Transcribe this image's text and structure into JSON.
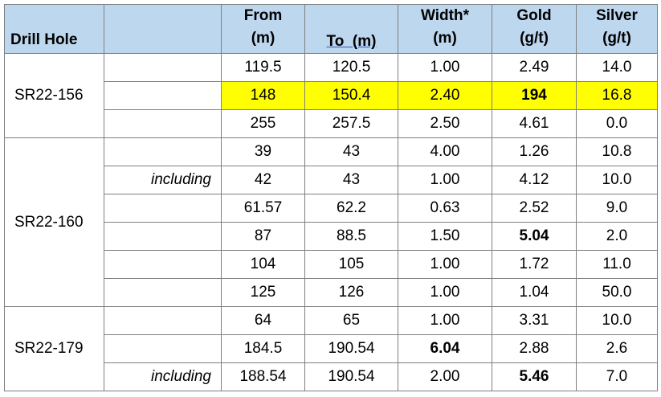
{
  "header": {
    "drill_hole": "Drill Hole",
    "from_l1": "From",
    "from_l2": "(m)",
    "to": "To  (m)",
    "width_l1": "Width*",
    "width_l2": "(m)",
    "gold_l1": "Gold",
    "gold_l2": "(g/t)",
    "silver_l1": "Silver",
    "silver_l2": "(g/t)"
  },
  "groups": [
    {
      "hole": "SR22-156",
      "rows": [
        {
          "note": "",
          "from": "119.5",
          "to": "120.5",
          "width": "1.00",
          "gold": "2.49",
          "silver": "14.0",
          "highlight": false,
          "bold_width": false,
          "bold_gold": false
        },
        {
          "note": "",
          "from": "148",
          "to": "150.4",
          "width": "2.40",
          "gold": "194",
          "silver": "16.8",
          "highlight": true,
          "bold_width": false,
          "bold_gold": true
        },
        {
          "note": "",
          "from": "255",
          "to": "257.5",
          "width": "2.50",
          "gold": "4.61",
          "silver": "0.0",
          "highlight": false,
          "bold_width": false,
          "bold_gold": false
        }
      ]
    },
    {
      "hole": "SR22-160",
      "rows": [
        {
          "note": "",
          "from": "39",
          "to": "43",
          "width": "4.00",
          "gold": "1.26",
          "silver": "10.8",
          "highlight": false,
          "bold_width": false,
          "bold_gold": false
        },
        {
          "note": "including",
          "from": "42",
          "to": "43",
          "width": "1.00",
          "gold": "4.12",
          "silver": "10.0",
          "highlight": false,
          "bold_width": false,
          "bold_gold": false
        },
        {
          "note": "",
          "from": "61.57",
          "to": "62.2",
          "width": "0.63",
          "gold": "2.52",
          "silver": "9.0",
          "highlight": false,
          "bold_width": false,
          "bold_gold": false
        },
        {
          "note": "",
          "from": "87",
          "to": "88.5",
          "width": "1.50",
          "gold": "5.04",
          "silver": "2.0",
          "highlight": false,
          "bold_width": false,
          "bold_gold": true
        },
        {
          "note": "",
          "from": "104",
          "to": "105",
          "width": "1.00",
          "gold": "1.72",
          "silver": "11.0",
          "highlight": false,
          "bold_width": false,
          "bold_gold": false
        },
        {
          "note": "",
          "from": "125",
          "to": "126",
          "width": "1.00",
          "gold": "1.04",
          "silver": "50.0",
          "highlight": false,
          "bold_width": false,
          "bold_gold": false
        }
      ]
    },
    {
      "hole": "SR22-179",
      "rows": [
        {
          "note": "",
          "from": "64",
          "to": "65",
          "width": "1.00",
          "gold": "3.31",
          "silver": "10.0",
          "highlight": false,
          "bold_width": false,
          "bold_gold": false
        },
        {
          "note": "",
          "from": "184.5",
          "to": "190.54",
          "width": "6.04",
          "gold": "2.88",
          "silver": "2.6",
          "highlight": false,
          "bold_width": true,
          "bold_gold": false
        },
        {
          "note": "including",
          "from": "188.54",
          "to": "190.54",
          "width": "2.00",
          "gold": "5.46",
          "silver": "7.0",
          "highlight": false,
          "bold_width": false,
          "bold_gold": true
        }
      ]
    }
  ],
  "colors": {
    "header_bg": "#bdd7ee",
    "highlight": "#ffff00",
    "border": "#7f7f7f"
  }
}
